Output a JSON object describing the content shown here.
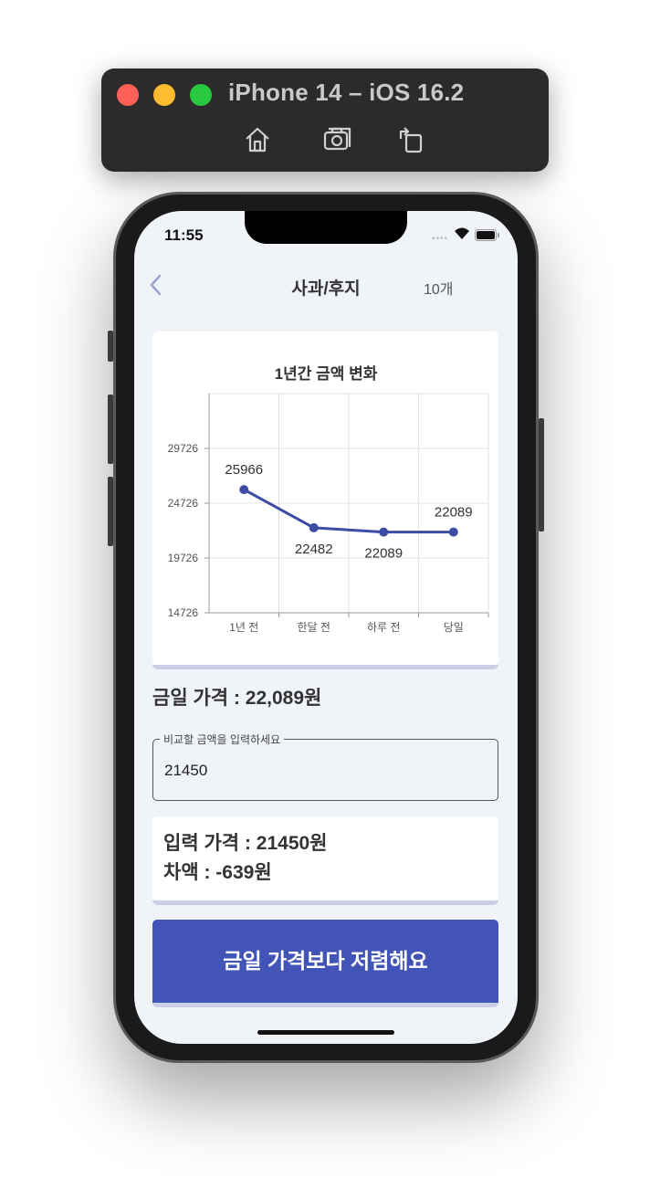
{
  "window": {
    "title": "iPhone 14 – iOS 16.2",
    "buttons": [
      "home-icon",
      "screenshot-icon",
      "rotate-icon"
    ]
  },
  "status_bar": {
    "time": "11:55",
    "signal_dots": "••••"
  },
  "header": {
    "title": "사과/후지",
    "count": "10개"
  },
  "chart_data": {
    "type": "line",
    "title": "1년간 금액 변화",
    "categories": [
      "1년 전",
      "한달 전",
      "하루 전",
      "당일"
    ],
    "values": [
      25966,
      22482,
      22089,
      22089
    ],
    "data_labels": [
      "25966",
      "22482",
      "22089",
      "22089"
    ],
    "y_ticks": [
      14726,
      19726,
      24726,
      29726
    ],
    "y_tick_labels": [
      "14726",
      "19726",
      "24726",
      "29726"
    ],
    "ylim": [
      14726,
      34726
    ],
    "xlabel": "",
    "ylabel": "",
    "grid": true,
    "line_color": "#3c4ba4"
  },
  "today_price": "금일 가격 : 22,089원",
  "compare_input": {
    "legend": "비교할 금액을 입력하세요",
    "value": "21450",
    "placeholder": ""
  },
  "result": {
    "input_price": "입력 가격 : 21450원",
    "difference": "차액 : -639원"
  },
  "action_button": {
    "label": "금일 가격보다 저렴해요"
  },
  "colors": {
    "accent": "#4254b5",
    "background": "#f0f3f8",
    "card_border": "#c8cfe6"
  }
}
